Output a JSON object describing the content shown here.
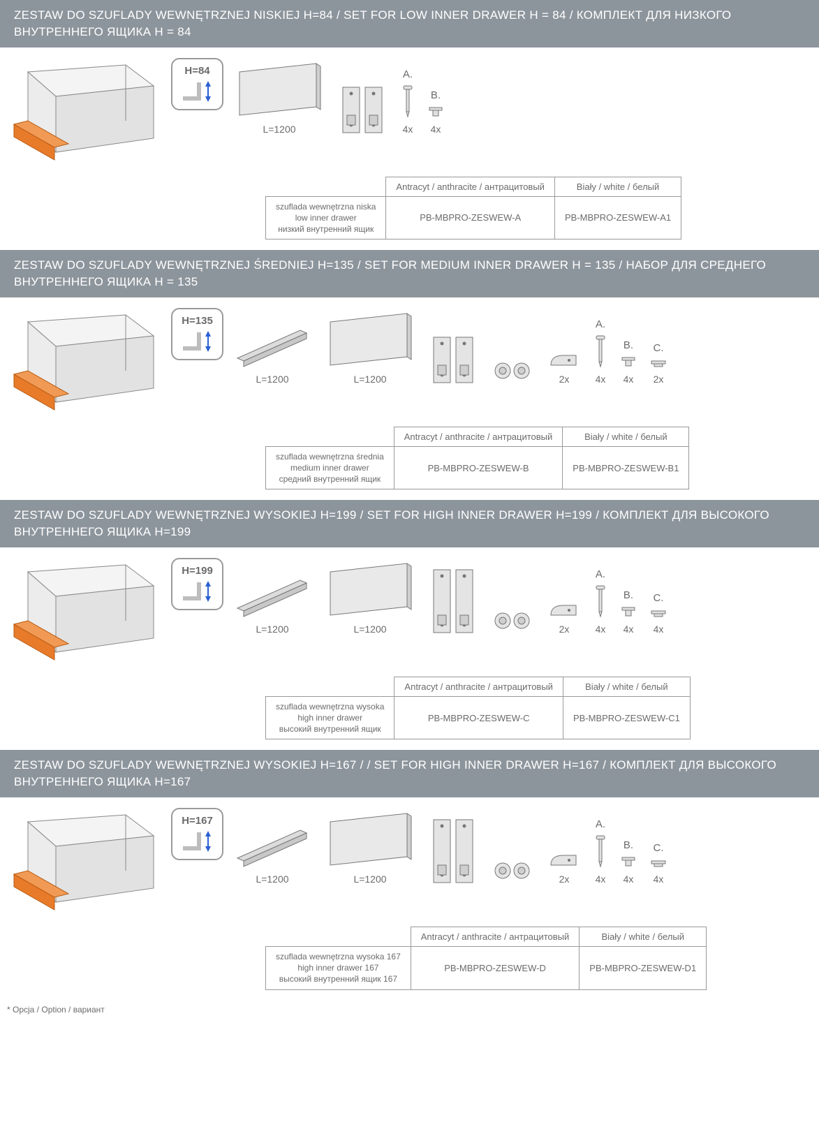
{
  "colors": {
    "header_bg": "#8d959c",
    "header_text": "#ffffff",
    "body_text": "#6b6b6b",
    "border": "#999999",
    "accent_orange": "#e87b2a",
    "line_gray": "#777777",
    "fill_gray": "#dcdcdc"
  },
  "sections": [
    {
      "title": "ZESTAW DO SZUFLADY WEWNĘTRZNEJ NISKIEJ H=84 / SET FOR LOW INNER DRAWER H = 84 / КОМПЛЕКТ ДЛЯ НИЗКОГО ВНУТРЕННЕГО ЯЩИКА H = 84",
      "badge": "H=84",
      "panel_label": "L=1200",
      "fasteners": [
        {
          "letter": "A.",
          "qty": "4x",
          "type": "screw"
        },
        {
          "letter": "B.",
          "qty": "4x",
          "type": "cap1"
        }
      ],
      "has_rail": false,
      "has_clip": false,
      "clip_qty": "",
      "table": {
        "hdr1": "Antracyt / anthracite / антрацитовый",
        "hdr2": "Biały / white / белый",
        "desc1": "szuflada wewnętrzna niska",
        "desc2": "low inner drawer",
        "desc3": "низкий внутренний ящик",
        "code1": "PB-MBPRO-ZESWEW-A",
        "code2": "PB-MBPRO-ZESWEW-A1"
      }
    },
    {
      "title": "ZESTAW DO SZUFLADY WEWNĘTRZNEJ ŚREDNIEJ H=135 / SET FOR MEDIUM INNER DRAWER H = 135 / НАБОР ДЛЯ СРЕДНЕГО ВНУТРЕННЕГО ЯЩИКА H = 135",
      "badge": "H=135",
      "rail_label": "L=1200",
      "panel_label": "L=1200",
      "fasteners": [
        {
          "letter": "A.",
          "qty": "4x",
          "type": "screw"
        },
        {
          "letter": "B.",
          "qty": "4x",
          "type": "cap1"
        },
        {
          "letter": "C.",
          "qty": "2x",
          "type": "cap2"
        }
      ],
      "has_rail": true,
      "has_clip": true,
      "clip_qty": "2x",
      "table": {
        "hdr1": "Antracyt / anthracite / антрацитовый",
        "hdr2": "Biały / white / белый",
        "desc1": "szuflada wewnętrzna średnia",
        "desc2": "medium inner drawer",
        "desc3": "средний внутренний ящик",
        "code1": "PB-MBPRO-ZESWEW-B",
        "code2": "PB-MBPRO-ZESWEW-B1"
      }
    },
    {
      "title": "ZESTAW DO SZUFLADY WEWNĘTRZNEJ WYSOKIEJ H=199 / SET FOR HIGH INNER DRAWER H=199 / КОМПЛЕКТ ДЛЯ ВЫСОКОГО ВНУТРЕННЕГО ЯЩИКА H=199",
      "badge": "H=199",
      "rail_label": "L=1200",
      "panel_label": "L=1200",
      "fasteners": [
        {
          "letter": "A.",
          "qty": "4x",
          "type": "screw"
        },
        {
          "letter": "B.",
          "qty": "4x",
          "type": "cap1"
        },
        {
          "letter": "C.",
          "qty": "4x",
          "type": "cap2"
        }
      ],
      "has_rail": true,
      "has_clip": true,
      "clip_qty": "2x",
      "table": {
        "hdr1": "Antracyt / anthracite / антрацитовый",
        "hdr2": "Biały / white / белый",
        "desc1": "szuflada wewnętrzna wysoka",
        "desc2": "high inner drawer",
        "desc3": "высокий внутренний ящик",
        "code1": "PB-MBPRO-ZESWEW-C",
        "code2": "PB-MBPRO-ZESWEW-C1"
      }
    },
    {
      "title": "ZESTAW DO SZUFLADY WEWNĘTRZNEJ WYSOKIEJ H=167 / / SET FOR HIGH INNER DRAWER H=167 / КОМПЛЕКТ ДЛЯ ВЫСОКОГО ВНУТРЕННЕГО ЯЩИКА H=167",
      "badge": "H=167",
      "rail_label": "L=1200",
      "panel_label": "L=1200",
      "fasteners": [
        {
          "letter": "A.",
          "qty": "4x",
          "type": "screw"
        },
        {
          "letter": "B.",
          "qty": "4x",
          "type": "cap1"
        },
        {
          "letter": "C.",
          "qty": "4x",
          "type": "cap2"
        }
      ],
      "has_rail": true,
      "has_clip": true,
      "clip_qty": "2x",
      "table": {
        "hdr1": "Antracyt / anthracite / антрацитовый",
        "hdr2": "Biały / white / белый",
        "desc1": "szuflada wewnętrzna wysoka 167",
        "desc2": "high inner drawer 167",
        "desc3": "высокий внутренний ящик 167",
        "code1": "PB-MBPRO-ZESWEW-D",
        "code2": "PB-MBPRO-ZESWEW-D1"
      }
    }
  ],
  "footnote": "* Opcja / Option / вариант"
}
